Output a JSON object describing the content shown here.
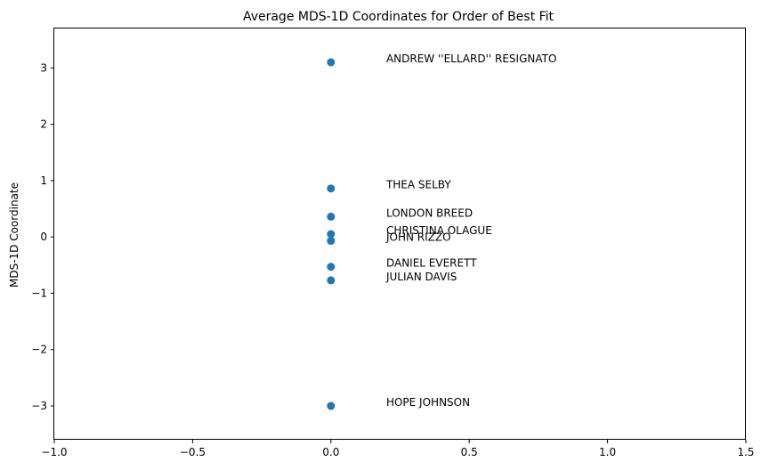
{
  "chart_data": {
    "type": "scatter",
    "title": "Average MDS-1D Coordinates for Order of Best Fit",
    "xlabel": "",
    "ylabel": "MDS-1D Coordinate",
    "xlim": [
      -1.0,
      1.5
    ],
    "ylim": [
      -3.6,
      3.7
    ],
    "xticks": [
      -1.0,
      -0.5,
      0.0,
      0.5,
      1.0,
      1.5
    ],
    "xtick_labels": [
      "−1.0",
      "−0.5",
      "0.0",
      "0.5",
      "1.0",
      "1.5"
    ],
    "yticks": [
      -3,
      -2,
      -1,
      0,
      1,
      2,
      3
    ],
    "ytick_labels": [
      "−3",
      "−2",
      "−1",
      "0",
      "1",
      "2",
      "3"
    ],
    "grid": false,
    "marker_color": "#1f77b4",
    "points": [
      {
        "name": "ANDREW ''ELLARD'' RESIGNATO",
        "x": 0.0,
        "y": 3.1,
        "label_x": 0.2,
        "label_y": 3.1
      },
      {
        "name": "THEA SELBY",
        "x": 0.0,
        "y": 0.86,
        "label_x": 0.2,
        "label_y": 0.86
      },
      {
        "name": "LONDON BREED",
        "x": 0.0,
        "y": 0.36,
        "label_x": 0.2,
        "label_y": 0.36
      },
      {
        "name": "CHRISTINA OLAGUE",
        "x": 0.0,
        "y": 0.05,
        "label_x": 0.2,
        "label_y": 0.05
      },
      {
        "name": "JOHN RIZZO",
        "x": 0.0,
        "y": -0.07,
        "label_x": 0.2,
        "label_y": -0.07
      },
      {
        "name": "DANIEL EVERETT",
        "x": 0.0,
        "y": -0.53,
        "label_x": 0.2,
        "label_y": -0.53
      },
      {
        "name": "JULIAN DAVIS",
        "x": 0.0,
        "y": -0.77,
        "label_x": 0.2,
        "label_y": -0.77
      },
      {
        "name": "HOPE JOHNSON",
        "x": 0.0,
        "y": -3.0,
        "label_x": 0.2,
        "label_y": -3.0
      }
    ]
  }
}
